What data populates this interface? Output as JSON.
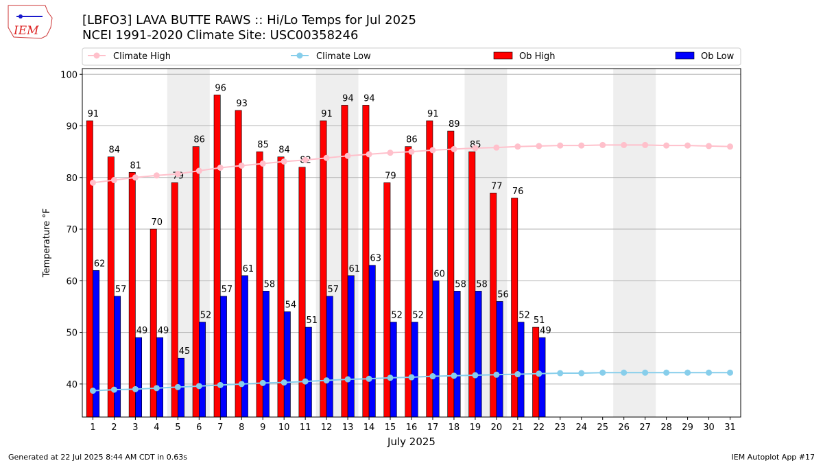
{
  "chart_data": {
    "type": "bar",
    "title": "[LBFO3] LAVA BUTTE RAWS :: Hi/Lo Temps for Jul 2025",
    "subtitle": "NCEI 1991-2020 Climate Site: USC00358246",
    "logo_text": "IEM",
    "x_label": "July 2025",
    "y_label": "Temperature °F",
    "footer_left": "Generated at 22 Jul 2025 8:44 AM CDT in 0.63s",
    "footer_right": "IEM Autoplot App #17",
    "x": [
      1,
      2,
      3,
      4,
      5,
      6,
      7,
      8,
      9,
      10,
      11,
      12,
      13,
      14,
      15,
      16,
      17,
      18,
      19,
      20,
      21,
      22,
      23,
      24,
      25,
      26,
      27,
      28,
      29,
      30,
      31
    ],
    "xlim": [
      0.5,
      31.5
    ],
    "xticks": [
      1,
      2,
      3,
      4,
      5,
      6,
      7,
      8,
      9,
      10,
      11,
      12,
      13,
      14,
      15,
      16,
      17,
      18,
      19,
      20,
      21,
      22,
      23,
      24,
      25,
      26,
      27,
      28,
      29,
      30,
      31
    ],
    "ylim": [
      33.6,
      101.1
    ],
    "yticks": [
      40,
      50,
      60,
      70,
      80,
      90,
      100
    ],
    "grid": true,
    "shaded_spans": [
      [
        4.5,
        6.5
      ],
      [
        11.5,
        13.5
      ],
      [
        18.5,
        20.5
      ],
      [
        25.5,
        27.5
      ]
    ],
    "series": [
      {
        "name": "Climate High",
        "type": "line",
        "color": "#ffc0cb",
        "values": [
          79,
          79.5,
          80,
          80.4,
          80.7,
          81.3,
          81.9,
          82.3,
          82.7,
          83.1,
          83.4,
          83.8,
          84.2,
          84.5,
          84.8,
          85.0,
          85.3,
          85.5,
          85.7,
          85.8,
          86.0,
          86.1,
          86.2,
          86.2,
          86.3,
          86.3,
          86.3,
          86.2,
          86.2,
          86.1,
          86.0
        ]
      },
      {
        "name": "Climate Low",
        "type": "line",
        "color": "#87ceeb",
        "values": [
          38.7,
          38.9,
          39.0,
          39.2,
          39.4,
          39.6,
          39.8,
          40.0,
          40.2,
          40.3,
          40.5,
          40.7,
          40.9,
          41.0,
          41.2,
          41.3,
          41.5,
          41.6,
          41.7,
          41.8,
          41.9,
          42.0,
          42.1,
          42.1,
          42.2,
          42.2,
          42.2,
          42.2,
          42.2,
          42.2,
          42.2
        ]
      },
      {
        "name": "Ob High",
        "type": "bar",
        "color": "#ff0000",
        "values": [
          91,
          84,
          81,
          70,
          79,
          86,
          96,
          93,
          85,
          84,
          82,
          91,
          94,
          94,
          79,
          86,
          91,
          89,
          85,
          77,
          76,
          51,
          null,
          null,
          null,
          null,
          null,
          null,
          null,
          null,
          null
        ]
      },
      {
        "name": "Ob Low",
        "type": "bar",
        "color": "#0000ff",
        "values": [
          62,
          57,
          49,
          49,
          45,
          52,
          57,
          61,
          58,
          54,
          51,
          57,
          61,
          63,
          52,
          52,
          60,
          58,
          58,
          56,
          52,
          49,
          null,
          null,
          null,
          null,
          null,
          null,
          null,
          null,
          null
        ]
      }
    ]
  }
}
